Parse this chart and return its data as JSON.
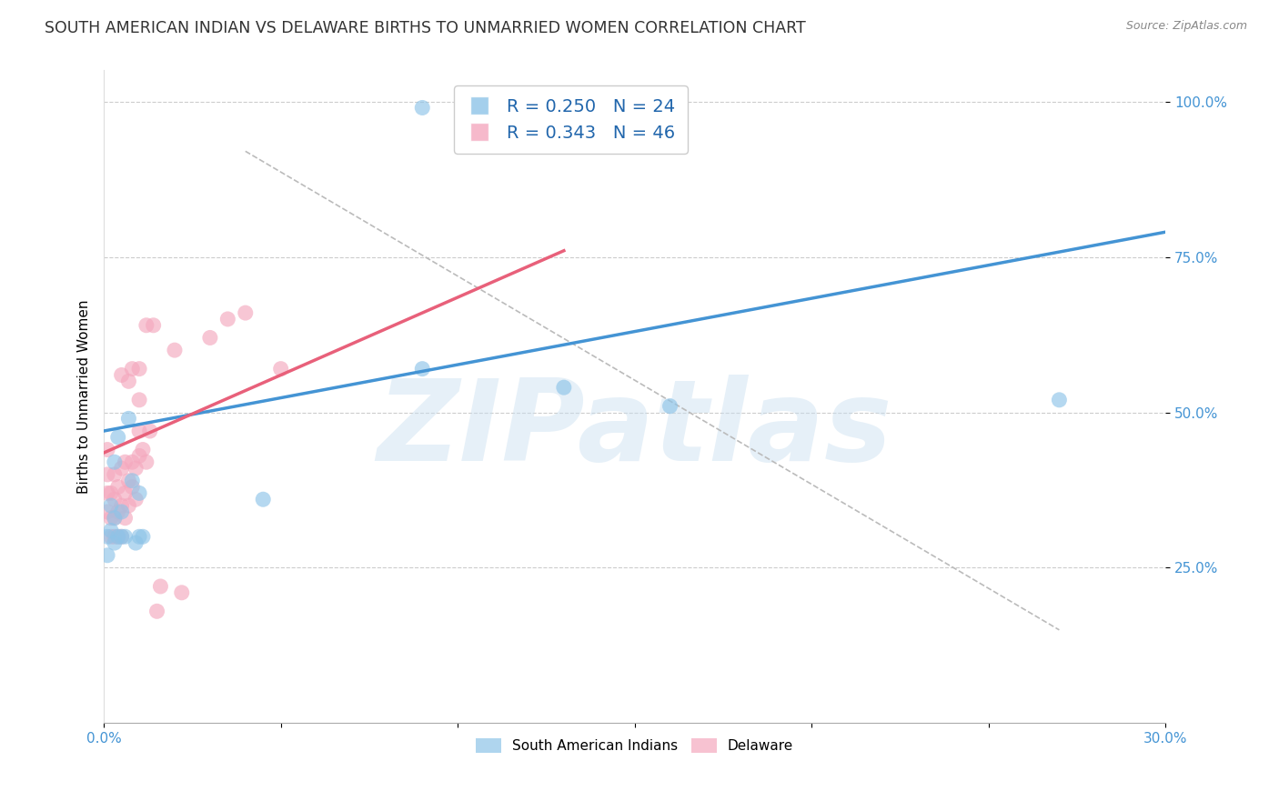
{
  "title": "SOUTH AMERICAN INDIAN VS DELAWARE BIRTHS TO UNMARRIED WOMEN CORRELATION CHART",
  "source": "Source: ZipAtlas.com",
  "ylabel": "Births to Unmarried Women",
  "x_min": 0.0,
  "x_max": 0.3,
  "y_min": 0.0,
  "y_max": 1.05,
  "x_ticks": [
    0.0,
    0.05,
    0.1,
    0.15,
    0.2,
    0.25,
    0.3
  ],
  "x_tick_labels": [
    "0.0%",
    "",
    "",
    "",
    "",
    "",
    "30.0%"
  ],
  "y_ticks": [
    0.25,
    0.5,
    0.75,
    1.0
  ],
  "y_tick_labels": [
    "25.0%",
    "50.0%",
    "75.0%",
    "100.0%"
  ],
  "blue_color": "#8ec4e8",
  "pink_color": "#f4a8be",
  "blue_line_color": "#4494d4",
  "pink_line_color": "#e8607a",
  "R_blue": 0.25,
  "N_blue": 24,
  "R_pink": 0.343,
  "N_pink": 46,
  "legend_label_blue": "South American Indians",
  "legend_label_pink": "Delaware",
  "watermark": "ZIPatlas",
  "watermark_color": "#c8dff0",
  "blue_scatter_x": [
    0.001,
    0.001,
    0.002,
    0.002,
    0.003,
    0.003,
    0.003,
    0.004,
    0.004,
    0.005,
    0.005,
    0.006,
    0.007,
    0.008,
    0.009,
    0.01,
    0.01,
    0.011,
    0.045,
    0.09,
    0.09,
    0.13,
    0.16,
    0.27
  ],
  "blue_scatter_y": [
    0.3,
    0.27,
    0.31,
    0.35,
    0.29,
    0.33,
    0.42,
    0.3,
    0.46,
    0.3,
    0.34,
    0.3,
    0.49,
    0.39,
    0.29,
    0.3,
    0.37,
    0.3,
    0.36,
    0.57,
    0.99,
    0.54,
    0.51,
    0.52
  ],
  "pink_scatter_x": [
    0.001,
    0.001,
    0.001,
    0.001,
    0.002,
    0.002,
    0.002,
    0.003,
    0.003,
    0.003,
    0.003,
    0.004,
    0.004,
    0.004,
    0.005,
    0.005,
    0.005,
    0.005,
    0.006,
    0.006,
    0.006,
    0.007,
    0.007,
    0.007,
    0.008,
    0.008,
    0.008,
    0.009,
    0.009,
    0.01,
    0.01,
    0.01,
    0.01,
    0.011,
    0.012,
    0.012,
    0.013,
    0.014,
    0.015,
    0.016,
    0.02,
    0.022,
    0.03,
    0.035,
    0.04,
    0.05
  ],
  "pink_scatter_y": [
    0.34,
    0.37,
    0.4,
    0.44,
    0.3,
    0.33,
    0.37,
    0.3,
    0.33,
    0.36,
    0.4,
    0.3,
    0.34,
    0.38,
    0.3,
    0.35,
    0.41,
    0.56,
    0.33,
    0.37,
    0.42,
    0.35,
    0.39,
    0.55,
    0.38,
    0.42,
    0.57,
    0.36,
    0.41,
    0.43,
    0.47,
    0.52,
    0.57,
    0.44,
    0.64,
    0.42,
    0.47,
    0.64,
    0.18,
    0.22,
    0.6,
    0.21,
    0.62,
    0.65,
    0.66,
    0.57
  ],
  "blue_trend_x": [
    0.0,
    0.3
  ],
  "blue_trend_y": [
    0.47,
    0.79
  ],
  "pink_trend_x": [
    0.0,
    0.13
  ],
  "pink_trend_y": [
    0.435,
    0.76
  ],
  "ref_line_x": [
    0.04,
    0.27
  ],
  "ref_line_y": [
    0.92,
    0.15
  ],
  "title_fontsize": 12.5,
  "axis_label_fontsize": 11,
  "tick_fontsize": 11,
  "legend_fontsize": 14
}
